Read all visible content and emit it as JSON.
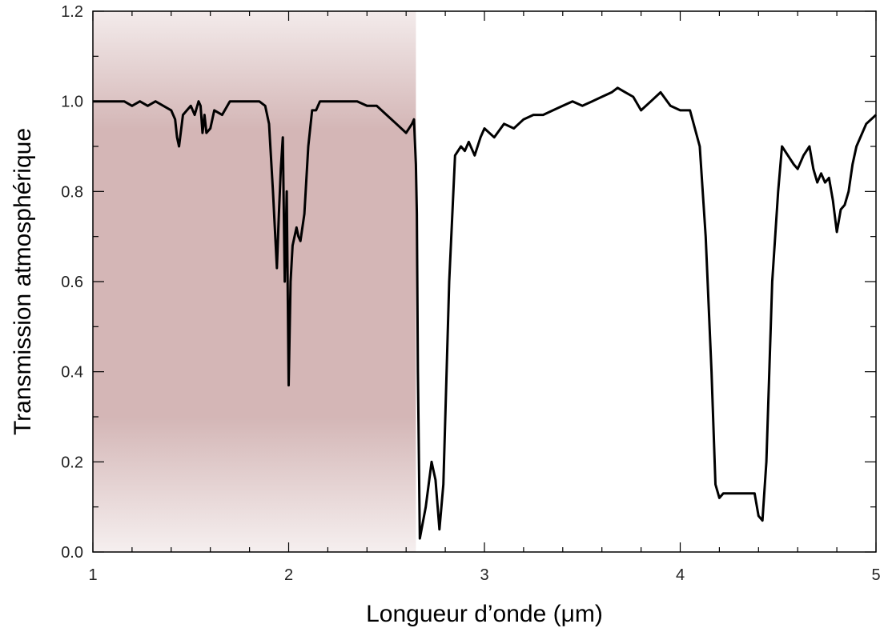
{
  "chart_data": {
    "type": "line",
    "title": "",
    "xlabel": "Longueur d’onde (μm)",
    "ylabel": "Transmission atmosphérique",
    "xlim": [
      1,
      5
    ],
    "ylim": [
      0,
      1.2
    ],
    "xticks": [
      "1",
      "2",
      "3",
      "4",
      "5"
    ],
    "yticks": [
      "0.0",
      "0.2",
      "0.4",
      "0.6",
      "0.8",
      "1.0",
      "1.2"
    ],
    "grid": false,
    "shaded_region": {
      "x_start": 1.0,
      "x_end": 2.65,
      "color": "#b07a7a"
    },
    "line_color": "#000000",
    "series": [
      {
        "x": [
          1.0,
          1.04,
          1.08,
          1.12,
          1.16,
          1.2,
          1.24,
          1.28,
          1.32,
          1.36,
          1.4,
          1.42,
          1.43,
          1.44,
          1.46,
          1.48,
          1.5,
          1.52,
          1.54,
          1.55,
          1.56,
          1.57,
          1.58,
          1.6,
          1.62,
          1.66,
          1.7,
          1.8,
          1.85,
          1.88,
          1.9,
          1.92,
          1.94,
          1.95,
          1.96,
          1.97,
          1.98,
          1.99,
          2.0,
          2.01,
          2.02,
          2.04,
          2.05,
          2.06,
          2.08,
          2.1,
          2.12,
          2.14,
          2.16,
          2.18,
          2.2,
          2.25,
          2.3,
          2.35,
          2.4,
          2.45,
          2.5,
          2.55,
          2.6,
          2.63,
          2.64,
          2.65,
          2.655,
          2.66,
          2.67,
          2.7,
          2.73,
          2.75,
          2.77,
          2.79,
          2.82,
          2.85,
          2.88,
          2.9,
          2.92,
          2.95,
          2.98,
          3.0,
          3.05,
          3.1,
          3.15,
          3.2,
          3.25,
          3.3,
          3.35,
          3.4,
          3.45,
          3.5,
          3.55,
          3.6,
          3.65,
          3.68,
          3.72,
          3.76,
          3.8,
          3.85,
          3.9,
          3.95,
          4.0,
          4.05,
          4.1,
          4.13,
          4.16,
          4.18,
          4.2,
          4.22,
          4.25,
          4.3,
          4.35,
          4.38,
          4.4,
          4.42,
          4.44,
          4.47,
          4.5,
          4.52,
          4.55,
          4.58,
          4.6,
          4.63,
          4.66,
          4.68,
          4.7,
          4.72,
          4.74,
          4.76,
          4.78,
          4.8,
          4.82,
          4.84,
          4.86,
          4.88,
          4.9,
          4.95,
          5.0
        ],
        "y": [
          1.0,
          1.0,
          1.0,
          1.0,
          1.0,
          0.99,
          1.0,
          0.99,
          1.0,
          0.99,
          0.98,
          0.96,
          0.92,
          0.9,
          0.97,
          0.98,
          0.99,
          0.97,
          1.0,
          0.99,
          0.93,
          0.97,
          0.93,
          0.94,
          0.98,
          0.97,
          1.0,
          1.0,
          1.0,
          0.99,
          0.95,
          0.8,
          0.63,
          0.75,
          0.85,
          0.92,
          0.6,
          0.8,
          0.37,
          0.6,
          0.68,
          0.72,
          0.7,
          0.69,
          0.75,
          0.9,
          0.98,
          0.98,
          1.0,
          1.0,
          1.0,
          1.0,
          1.0,
          1.0,
          0.99,
          0.99,
          0.97,
          0.95,
          0.93,
          0.95,
          0.96,
          0.86,
          0.75,
          0.4,
          0.03,
          0.1,
          0.2,
          0.16,
          0.05,
          0.15,
          0.6,
          0.88,
          0.9,
          0.89,
          0.91,
          0.88,
          0.92,
          0.94,
          0.92,
          0.95,
          0.94,
          0.96,
          0.97,
          0.97,
          0.98,
          0.99,
          1.0,
          0.99,
          1.0,
          1.01,
          1.02,
          1.03,
          1.02,
          1.01,
          0.98,
          1.0,
          1.02,
          0.99,
          0.98,
          0.98,
          0.9,
          0.7,
          0.4,
          0.15,
          0.12,
          0.13,
          0.13,
          0.13,
          0.13,
          0.13,
          0.08,
          0.07,
          0.2,
          0.6,
          0.8,
          0.9,
          0.88,
          0.86,
          0.85,
          0.88,
          0.9,
          0.85,
          0.82,
          0.84,
          0.82,
          0.83,
          0.78,
          0.71,
          0.76,
          0.77,
          0.8,
          0.86,
          0.9,
          0.95,
          0.97
        ]
      }
    ]
  }
}
